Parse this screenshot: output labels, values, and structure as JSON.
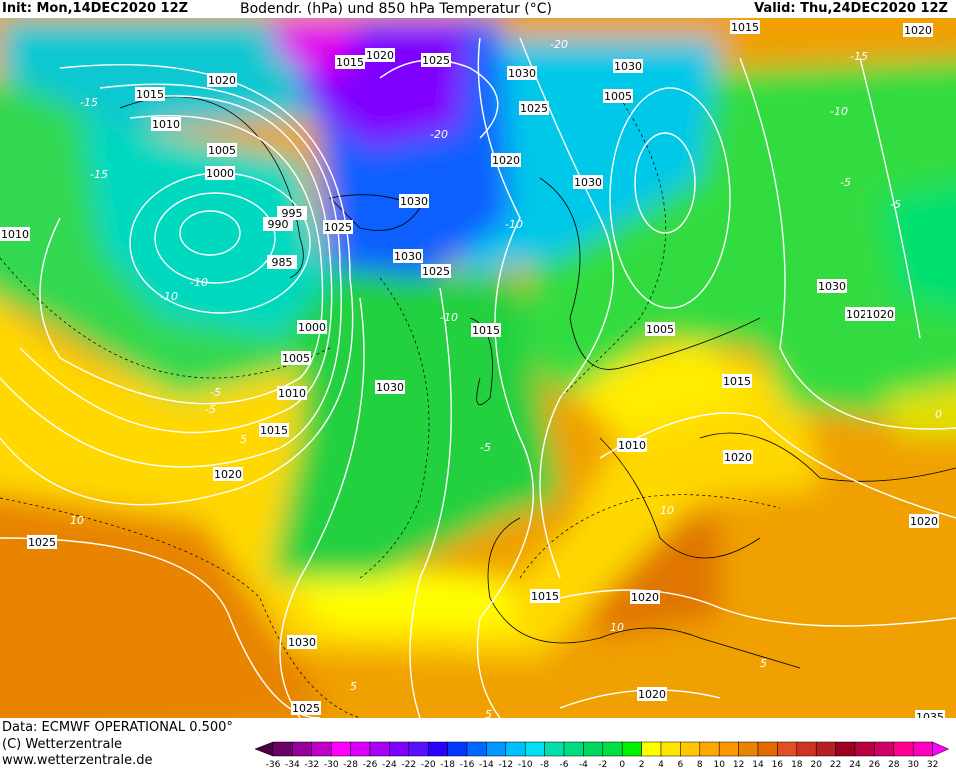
{
  "header": {
    "init": "Init: Mon,14DEC2020 12Z",
    "title": "Bodendr. (hPa) und 850 hPa Temperatur (°C)",
    "valid": "Valid: Thu,24DEC2020 12Z"
  },
  "footer": {
    "data_source": "Data: ECMWF OPERATIONAL 0.500°",
    "copyright": "(C) Wetterzentrale",
    "website": "www.wetterzentrale.de"
  },
  "legend": {
    "ticks": [
      "-36",
      "-34",
      "-32",
      "-30",
      "-28",
      "-26",
      "-24",
      "-22",
      "-20",
      "-18",
      "-16",
      "-14",
      "-12",
      "-10",
      "-8",
      "-6",
      "-4",
      "-2",
      "0",
      "2",
      "4",
      "6",
      "8",
      "10",
      "12",
      "14",
      "16",
      "18",
      "20",
      "22",
      "24",
      "26",
      "28",
      "30",
      "32"
    ],
    "colors": [
      "#6a0068",
      "#98009a",
      "#c000c8",
      "#ff00ff",
      "#d800f8",
      "#a800f8",
      "#8000ff",
      "#5a10ff",
      "#2a00ff",
      "#0038ff",
      "#0068ff",
      "#0098ff",
      "#00c0ff",
      "#00e0f0",
      "#00e0a8",
      "#00dc80",
      "#00d860",
      "#00e040",
      "#00f000",
      "#ffff00",
      "#ffe400",
      "#ffc800",
      "#ffa800",
      "#ff9800",
      "#e88400",
      "#e06c00",
      "#e05020",
      "#d03420",
      "#b82020",
      "#a00020",
      "#b80040",
      "#d00064",
      "#ff0090",
      "#ff00c0"
    ],
    "low_arrow_color": "#4a0040",
    "high_arrow_color": "#ff00ff"
  },
  "map": {
    "isobar_labels": [
      "1020",
      "1015",
      "1010",
      "1005",
      "1000",
      "995",
      "990",
      "985",
      "1025",
      "1015",
      "1020",
      "1025",
      "1030",
      "1025",
      "1020",
      "1030",
      "1030",
      "1025",
      "1015",
      "1005",
      "1030",
      "1010",
      "1005",
      "1000",
      "1015",
      "1020",
      "1025",
      "1030",
      "1025",
      "1015",
      "1020",
      "1020",
      "1010",
      "1020",
      "1015",
      "1030",
      "1025",
      "1020",
      "1020",
      "1030",
      "1005",
      "1030",
      "1010",
      "1015",
      "1035",
      "1020"
    ],
    "temperature_labels": [
      "-15",
      "-10",
      "-5",
      "-10",
      "-5",
      "-10",
      "5",
      "10",
      "5",
      "10",
      "-5",
      "-10",
      "-5",
      "-15",
      "-20",
      "-20",
      "-15",
      "-10",
      "5",
      "10",
      "5",
      "0",
      "-5"
    ]
  }
}
